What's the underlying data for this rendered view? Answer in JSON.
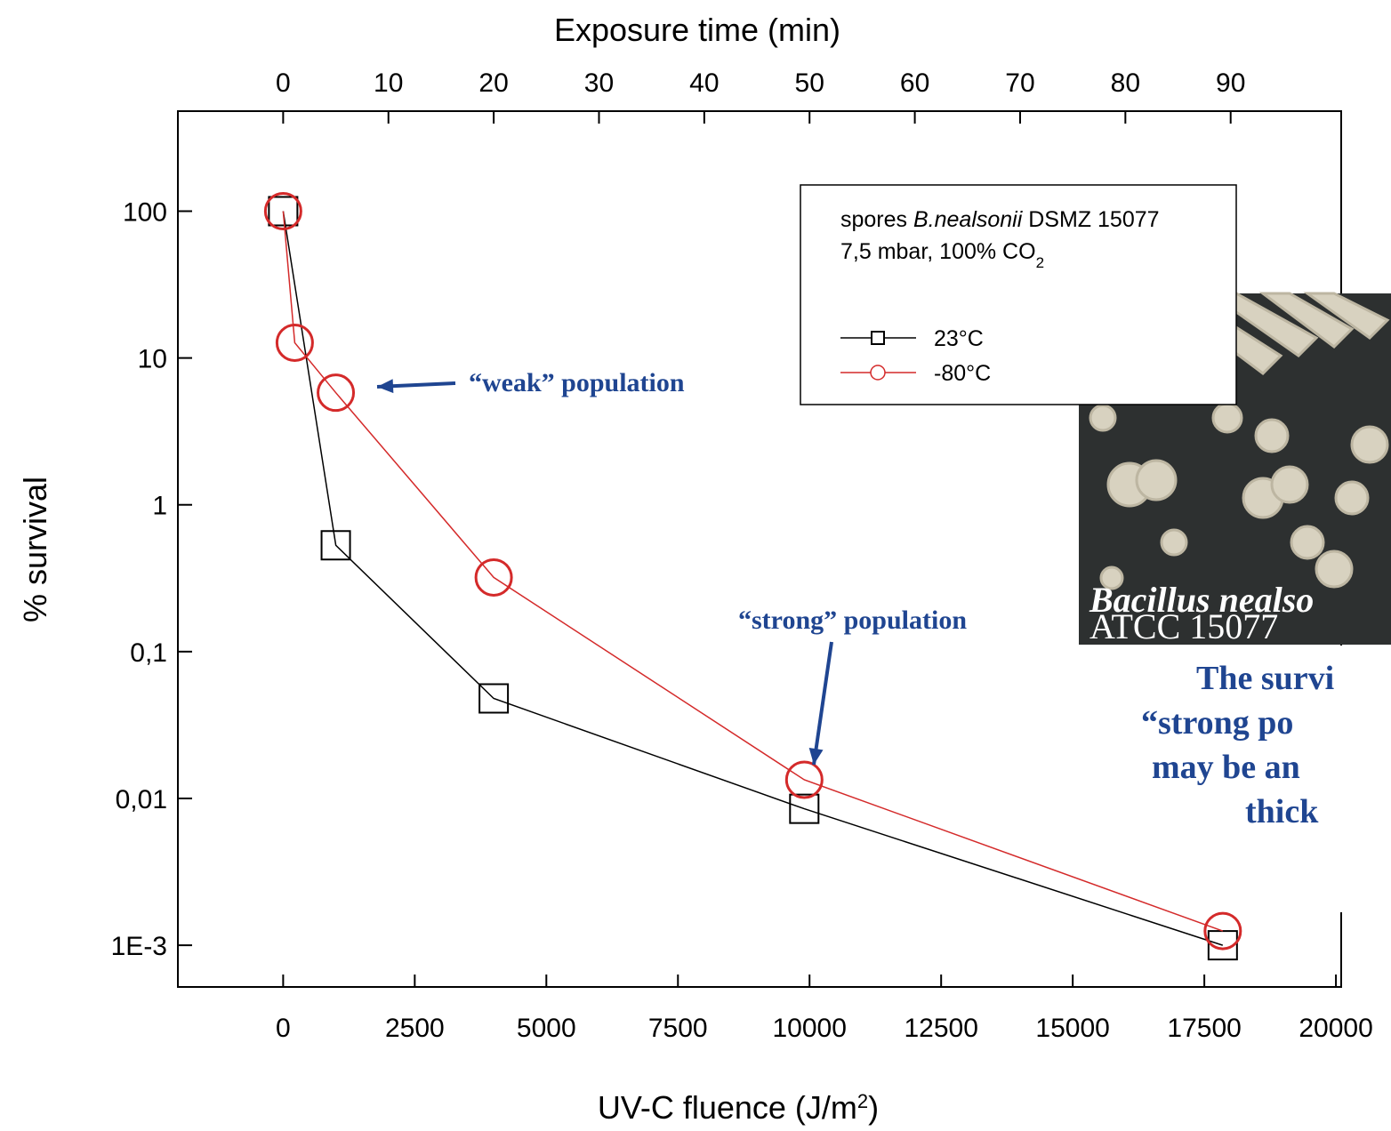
{
  "chart_data": {
    "type": "line",
    "x2_label": "Exposure time (min)",
    "x_label_parts": [
      "UV-C fluence (J/m",
      "2",
      ")"
    ],
    "y_label": "% survival",
    "log_y": true,
    "xlim": [
      -2000,
      20100
    ],
    "xticks": [
      0,
      2500,
      5000,
      7500,
      10000,
      12500,
      15000,
      17500,
      20000
    ],
    "x2lim": [
      -10,
      100.5
    ],
    "x2ticks": [
      0,
      10,
      20,
      30,
      40,
      50,
      60,
      70,
      80,
      90
    ],
    "ylim": [
      0.00052,
      480
    ],
    "yticks": [
      100,
      10,
      1,
      {
        "value": 0.1,
        "label": "0,1"
      },
      {
        "value": 0.01,
        "label": "0,01"
      },
      {
        "value": 0.001,
        "label": "1E-3"
      }
    ],
    "legend_title_parts": [
      "spores ",
      "B.nealsonii",
      " DSMZ 15077"
    ],
    "legend_subtitle_parts": [
      "7,5 mbar, 100% CO",
      "2"
    ],
    "series": [
      {
        "name": "23°C",
        "color": "#000000",
        "marker": "square",
        "x": [
          0,
          1000,
          4000,
          9900,
          17850
        ],
        "values": [
          100,
          0.53,
          0.048,
          0.0085,
          0.001
        ]
      },
      {
        "name": "-80°C",
        "color": "#d42a2a",
        "marker": "circle",
        "x": [
          0,
          220,
          1000,
          4000,
          9900,
          17850
        ],
        "values": [
          100,
          12.7,
          5.8,
          0.32,
          0.0134,
          0.00125
        ]
      }
    ],
    "annotations": [
      "“weak” population",
      "“strong” population"
    ],
    "inset_caption": [
      "Bacillus nealso",
      "ATCC 15077"
    ],
    "side_text": [
      "The survi",
      "“strong po",
      "may be an",
      "thick"
    ]
  }
}
